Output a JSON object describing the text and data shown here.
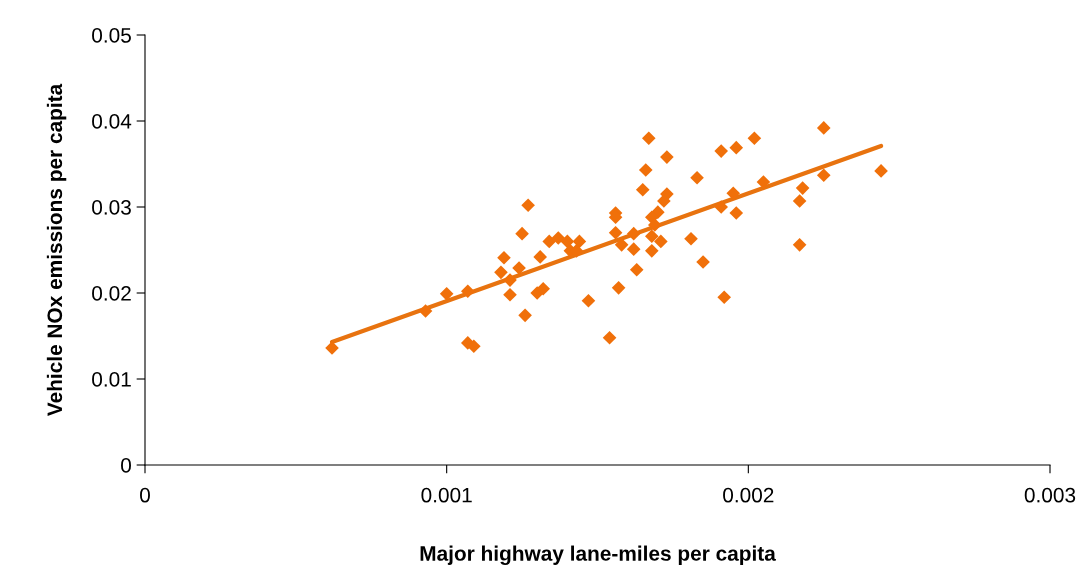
{
  "chart_data": {
    "type": "scatter",
    "xlabel": "Major highway lane-miles per capita",
    "ylabel": "Vehicle NOx emissions per capita",
    "xlim": [
      0,
      0.003
    ],
    "xticks": [
      0,
      0.001,
      0.002,
      0.003
    ],
    "ylim": [
      0,
      0.05
    ],
    "yticks": [
      0,
      0.01,
      0.02,
      0.03,
      0.04,
      0.05
    ],
    "grid": false,
    "series": [
      {
        "marker": "diamond",
        "color": "#f0700a",
        "x": [
          0.00062,
          0.00093,
          0.001,
          0.00107,
          0.00107,
          0.00109,
          0.00119,
          0.00118,
          0.00121,
          0.00121,
          0.00124,
          0.00125,
          0.00127,
          0.00126,
          0.0013,
          0.00132,
          0.00131,
          0.00134,
          0.00137,
          0.0014,
          0.00141,
          0.00144,
          0.00143,
          0.00147,
          0.00154,
          0.00157,
          0.00163,
          0.00167,
          0.00173,
          0.00166,
          0.00165,
          0.00173,
          0.00172,
          0.00156,
          0.00156,
          0.0017,
          0.00168,
          0.00169,
          0.00156,
          0.00162,
          0.00168,
          0.00171,
          0.00158,
          0.00162,
          0.00168,
          0.00181,
          0.00185,
          0.00192,
          0.00183,
          0.00191,
          0.00196,
          0.00202,
          0.00225,
          0.00195,
          0.00191,
          0.00196,
          0.00205,
          0.00218,
          0.00217,
          0.00225,
          0.00217,
          0.00244
        ],
        "values": [
          0.0136,
          0.0179,
          0.0199,
          0.0202,
          0.0142,
          0.0138,
          0.0241,
          0.0224,
          0.0215,
          0.0198,
          0.0229,
          0.0269,
          0.0302,
          0.0174,
          0.02,
          0.0205,
          0.0242,
          0.026,
          0.0264,
          0.026,
          0.0249,
          0.026,
          0.0249,
          0.0191,
          0.0148,
          0.0206,
          0.0227,
          0.038,
          0.0358,
          0.0343,
          0.032,
          0.0315,
          0.0307,
          0.0293,
          0.0288,
          0.0294,
          0.0288,
          0.0279,
          0.027,
          0.0269,
          0.0266,
          0.026,
          0.0256,
          0.0251,
          0.0249,
          0.0263,
          0.0236,
          0.0195,
          0.0334,
          0.0365,
          0.0369,
          0.038,
          0.0392,
          0.0316,
          0.03,
          0.0293,
          0.0329,
          0.0322,
          0.0307,
          0.0337,
          0.0256,
          0.0342
        ]
      },
      {
        "type": "line",
        "marker": "none",
        "color": "#e8730f",
        "x": [
          0.00062,
          0.00244
        ],
        "values": [
          0.0143,
          0.0371
        ]
      }
    ]
  }
}
